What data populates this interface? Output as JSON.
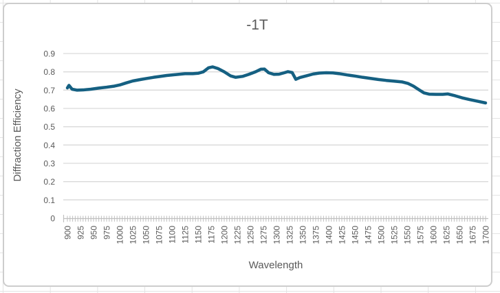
{
  "chart": {
    "title": "-1T",
    "x_axis": {
      "title": "Wavelength",
      "tick_labels": [
        "900",
        "925",
        "950",
        "975",
        "1000",
        "1025",
        "1050",
        "1075",
        "1100",
        "1125",
        "1150",
        "1175",
        "1200",
        "1225",
        "1250",
        "1275",
        "1300",
        "1325",
        "1350",
        "1375",
        "1400",
        "1425",
        "1450",
        "1475",
        "1500",
        "1525",
        "1550",
        "1575",
        "1600",
        "1625",
        "1650",
        "1675",
        "1700"
      ],
      "min": 900,
      "max": 1700,
      "label_interval": 25,
      "minor_tick_interval": 5
    },
    "y_axis": {
      "title": "Diffraction Efficiency",
      "tick_labels": [
        "0",
        "0.1",
        "0.2",
        "0.3",
        "0.4",
        "0.5",
        "0.6",
        "0.7",
        "0.8",
        "0.9"
      ],
      "min": 0,
      "max": 0.9
    },
    "colors": {
      "line": "#156082",
      "text": "#595959",
      "gridline": "#D9D9D9",
      "axis": "#BFBFBF",
      "chart_border": "#CDCDCD",
      "sheet_gridline": "#E3E3E3"
    }
  },
  "chart_data": {
    "type": "line",
    "title": "-1T",
    "xlabel": "Wavelength",
    "ylabel": "Diffraction Efficiency",
    "xlim": [
      900,
      1700
    ],
    "ylim": [
      0,
      0.9
    ],
    "x_tick_step_labels": 25,
    "y_tick_step": 0.1,
    "grid": "horizontal",
    "legend": "none",
    "series": [
      {
        "name": "-1T",
        "color": "#156082",
        "points": [
          [
            900,
            0.712
          ],
          [
            903,
            0.726
          ],
          [
            909,
            0.705
          ],
          [
            918,
            0.7
          ],
          [
            930,
            0.701
          ],
          [
            945,
            0.705
          ],
          [
            960,
            0.711
          ],
          [
            975,
            0.716
          ],
          [
            990,
            0.722
          ],
          [
            1000,
            0.728
          ],
          [
            1012,
            0.739
          ],
          [
            1025,
            0.75
          ],
          [
            1040,
            0.758
          ],
          [
            1050,
            0.763
          ],
          [
            1065,
            0.77
          ],
          [
            1075,
            0.774
          ],
          [
            1090,
            0.78
          ],
          [
            1100,
            0.783
          ],
          [
            1115,
            0.787
          ],
          [
            1125,
            0.79
          ],
          [
            1140,
            0.79
          ],
          [
            1150,
            0.792
          ],
          [
            1160,
            0.8
          ],
          [
            1170,
            0.822
          ],
          [
            1178,
            0.827
          ],
          [
            1188,
            0.818
          ],
          [
            1200,
            0.8
          ],
          [
            1212,
            0.778
          ],
          [
            1222,
            0.77
          ],
          [
            1235,
            0.775
          ],
          [
            1247,
            0.786
          ],
          [
            1260,
            0.8
          ],
          [
            1270,
            0.814
          ],
          [
            1277,
            0.815
          ],
          [
            1285,
            0.795
          ],
          [
            1295,
            0.786
          ],
          [
            1305,
            0.787
          ],
          [
            1315,
            0.795
          ],
          [
            1322,
            0.801
          ],
          [
            1330,
            0.796
          ],
          [
            1337,
            0.759
          ],
          [
            1345,
            0.769
          ],
          [
            1357,
            0.778
          ],
          [
            1370,
            0.788
          ],
          [
            1382,
            0.793
          ],
          [
            1395,
            0.795
          ],
          [
            1408,
            0.794
          ],
          [
            1420,
            0.79
          ],
          [
            1435,
            0.783
          ],
          [
            1450,
            0.777
          ],
          [
            1465,
            0.77
          ],
          [
            1480,
            0.764
          ],
          [
            1495,
            0.758
          ],
          [
            1510,
            0.753
          ],
          [
            1525,
            0.749
          ],
          [
            1540,
            0.745
          ],
          [
            1552,
            0.736
          ],
          [
            1562,
            0.722
          ],
          [
            1572,
            0.703
          ],
          [
            1582,
            0.685
          ],
          [
            1592,
            0.678
          ],
          [
            1605,
            0.677
          ],
          [
            1618,
            0.677
          ],
          [
            1628,
            0.679
          ],
          [
            1642,
            0.669
          ],
          [
            1655,
            0.658
          ],
          [
            1670,
            0.648
          ],
          [
            1685,
            0.639
          ],
          [
            1700,
            0.63
          ]
        ]
      }
    ]
  }
}
